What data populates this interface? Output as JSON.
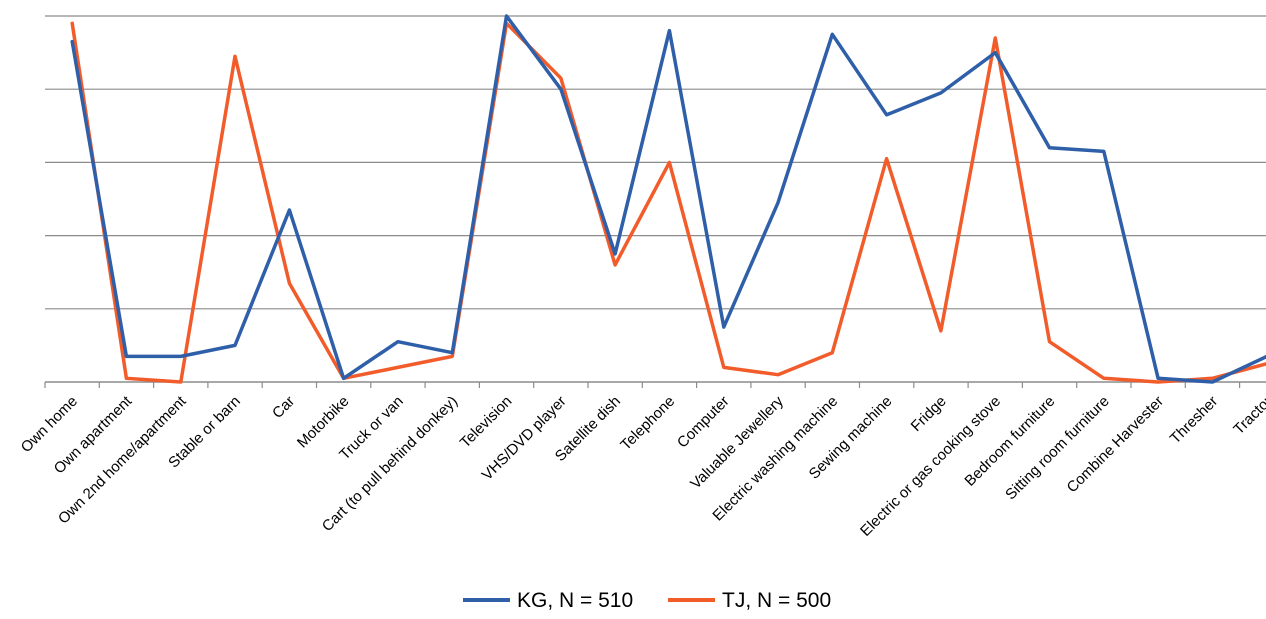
{
  "chart_data": {
    "type": "line",
    "title": "",
    "xlabel": "",
    "ylabel": "",
    "ylim": [
      0,
      100
    ],
    "grid": true,
    "legend_position": "bottom",
    "categories": [
      "Own home",
      "Own apartment",
      "Own 2nd home/apartment",
      "Stable or barn",
      "Car",
      "Motorbike",
      "Truck or van",
      "Cart (to pull behind donkey)",
      "Television",
      "VHS/DVD player",
      "Satellite dish",
      "Telephone",
      "Computer",
      "Valuable Jewellery",
      "Electric washing machine",
      "Sewing machine",
      "Fridge",
      "Electric or gas cooking stove",
      "Bedroom furniture",
      "Sitting room furniture",
      "Combine Harvester",
      "Thresher",
      "Tractor"
    ],
    "series": [
      {
        "name": "KG, N = 510",
        "color": "#2e5fa8",
        "values": [
          93,
          7,
          7,
          10,
          47,
          1,
          11,
          8,
          100,
          80,
          35,
          96,
          15,
          49,
          95,
          73,
          79,
          90,
          64,
          63,
          1,
          0,
          7
        ]
      },
      {
        "name": "TJ, N = 500",
        "color": "#f25c2a",
        "values": [
          98,
          1,
          0,
          89,
          27,
          1,
          4,
          7,
          98,
          83,
          32,
          60,
          4,
          2,
          8,
          61,
          14,
          94,
          11,
          1,
          0,
          1,
          5
        ]
      }
    ]
  }
}
